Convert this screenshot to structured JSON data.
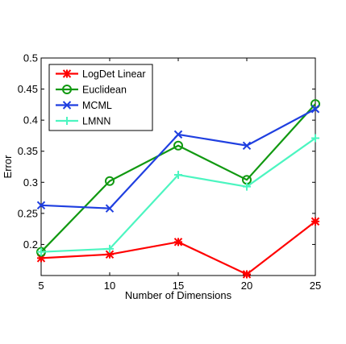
{
  "chart_data": {
    "type": "line",
    "title": "",
    "xlabel": "Number of Dimensions",
    "ylabel": "Error",
    "x": [
      5,
      10,
      15,
      20,
      25
    ],
    "xlim": [
      5,
      25
    ],
    "ylim": [
      0.15,
      0.5
    ],
    "xticks": [
      "5",
      "10",
      "15",
      "20",
      "25"
    ],
    "yticks": [
      "0.2",
      "0.25",
      "0.3",
      "0.35",
      "0.4",
      "0.45",
      "0.5"
    ],
    "grid": false,
    "legend_position": "top-left",
    "series": [
      {
        "name": "LogDet Linear",
        "color": "#ff0000",
        "marker": "asterisk",
        "values": [
          0.178,
          0.184,
          0.204,
          0.152,
          0.237
        ]
      },
      {
        "name": "Euclidean",
        "color": "#119911",
        "marker": "circle",
        "values": [
          0.188,
          0.302,
          0.359,
          0.304,
          0.426
        ]
      },
      {
        "name": "MCML",
        "color": "#1f3fe0",
        "marker": "x",
        "values": [
          0.263,
          0.258,
          0.377,
          0.359,
          0.418
        ]
      },
      {
        "name": "LMNN",
        "color": "#4cf5c0",
        "marker": "plus",
        "values": [
          0.188,
          0.193,
          0.312,
          0.293,
          0.371
        ]
      }
    ]
  }
}
